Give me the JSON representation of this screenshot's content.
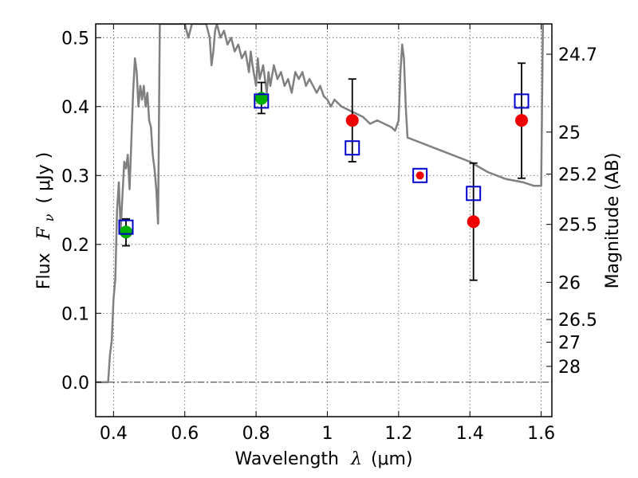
{
  "chart_data": {
    "type": "scatter",
    "title": "",
    "xlabel": "Wavelength",
    "xlabel_symbol": "λ",
    "xlabel_unit": "(μm)",
    "ylabel": "Flux",
    "ylabel_symbol": "F",
    "ylabel_subscript": "ν",
    "ylabel_unit": "( μJy )",
    "y2label": "Magnitude (AB)",
    "xlim": [
      0.35,
      1.63
    ],
    "ylim": [
      -0.05,
      0.52
    ],
    "grid": true,
    "grid_style": "dotted",
    "xticks": [
      0.4,
      0.6,
      0.8,
      1.0,
      1.2,
      1.4,
      1.6
    ],
    "xtick_labels": [
      "0.4",
      "0.6",
      "0.8",
      "1",
      "1.2",
      "1.4",
      "1.6"
    ],
    "yticks": [
      0.0,
      0.1,
      0.2,
      0.3,
      0.4,
      0.5
    ],
    "ytick_labels": [
      "0.0",
      "0.1",
      "0.2",
      "0.3",
      "0.4",
      "0.5"
    ],
    "right_ticks": [
      {
        "flux": 0.476,
        "label": "24.7"
      },
      {
        "flux": 0.363,
        "label": "25"
      },
      {
        "flux": 0.302,
        "label": "25.2"
      },
      {
        "flux": 0.229,
        "label": "25.5"
      },
      {
        "flux": 0.145,
        "label": "26"
      },
      {
        "flux": 0.091,
        "label": "26.5"
      },
      {
        "flux": 0.058,
        "label": "27"
      },
      {
        "flux": 0.023,
        "label": "28"
      }
    ],
    "zero_line": {
      "y": 0.0,
      "color": "#333333",
      "style": "dashdot"
    },
    "colors": {
      "template": "#808080",
      "model": "#0000cc",
      "observed_optical": "#00b000",
      "observed_ir": "#ee0000",
      "errorbar": "#000000"
    },
    "series": [
      {
        "kind": "model_template",
        "points": [
          [
            0.35,
            0.0
          ],
          [
            0.38,
            0.0
          ],
          [
            0.385,
            0.0
          ],
          [
            0.39,
            0.04
          ],
          [
            0.395,
            0.06
          ],
          [
            0.4,
            0.12
          ],
          [
            0.405,
            0.15
          ],
          [
            0.41,
            0.25
          ],
          [
            0.415,
            0.29
          ],
          [
            0.42,
            0.22
          ],
          [
            0.425,
            0.27
          ],
          [
            0.43,
            0.32
          ],
          [
            0.435,
            0.31
          ],
          [
            0.44,
            0.33
          ],
          [
            0.445,
            0.28
          ],
          [
            0.45,
            0.35
          ],
          [
            0.455,
            0.42
          ],
          [
            0.46,
            0.47
          ],
          [
            0.465,
            0.45
          ],
          [
            0.47,
            0.4
          ],
          [
            0.475,
            0.43
          ],
          [
            0.48,
            0.41
          ],
          [
            0.485,
            0.43
          ],
          [
            0.49,
            0.4
          ],
          [
            0.495,
            0.42
          ],
          [
            0.5,
            0.38
          ],
          [
            0.505,
            0.37
          ],
          [
            0.51,
            0.33
          ],
          [
            0.515,
            0.31
          ],
          [
            0.52,
            0.28
          ],
          [
            0.525,
            0.23
          ],
          [
            0.53,
            0.52
          ],
          [
            0.55,
            0.52
          ],
          [
            0.58,
            0.52
          ],
          [
            0.6,
            0.52
          ],
          [
            0.61,
            0.5
          ],
          [
            0.62,
            0.52
          ],
          [
            0.63,
            0.52
          ],
          [
            0.64,
            0.52
          ],
          [
            0.65,
            0.52
          ],
          [
            0.66,
            0.52
          ],
          [
            0.67,
            0.5
          ],
          [
            0.675,
            0.46
          ],
          [
            0.68,
            0.48
          ],
          [
            0.685,
            0.51
          ],
          [
            0.69,
            0.52
          ],
          [
            0.7,
            0.5
          ],
          [
            0.71,
            0.51
          ],
          [
            0.72,
            0.49
          ],
          [
            0.73,
            0.5
          ],
          [
            0.74,
            0.48
          ],
          [
            0.75,
            0.49
          ],
          [
            0.76,
            0.47
          ],
          [
            0.77,
            0.48
          ],
          [
            0.78,
            0.45
          ],
          [
            0.785,
            0.48
          ],
          [
            0.79,
            0.46
          ],
          [
            0.8,
            0.43
          ],
          [
            0.805,
            0.47
          ],
          [
            0.81,
            0.44
          ],
          [
            0.82,
            0.46
          ],
          [
            0.83,
            0.42
          ],
          [
            0.835,
            0.45
          ],
          [
            0.84,
            0.43
          ],
          [
            0.85,
            0.46
          ],
          [
            0.86,
            0.44
          ],
          [
            0.87,
            0.45
          ],
          [
            0.88,
            0.43
          ],
          [
            0.89,
            0.44
          ],
          [
            0.9,
            0.42
          ],
          [
            0.91,
            0.45
          ],
          [
            0.92,
            0.44
          ],
          [
            0.93,
            0.45
          ],
          [
            0.94,
            0.43
          ],
          [
            0.95,
            0.44
          ],
          [
            0.96,
            0.43
          ],
          [
            0.97,
            0.42
          ],
          [
            0.98,
            0.43
          ],
          [
            0.99,
            0.415
          ],
          [
            1.0,
            0.41
          ],
          [
            1.01,
            0.4
          ],
          [
            1.02,
            0.41
          ],
          [
            1.04,
            0.4
          ],
          [
            1.06,
            0.395
          ],
          [
            1.08,
            0.39
          ],
          [
            1.1,
            0.385
          ],
          [
            1.12,
            0.375
          ],
          [
            1.14,
            0.38
          ],
          [
            1.16,
            0.375
          ],
          [
            1.18,
            0.37
          ],
          [
            1.19,
            0.365
          ],
          [
            1.2,
            0.38
          ],
          [
            1.205,
            0.45
          ],
          [
            1.21,
            0.49
          ],
          [
            1.215,
            0.47
          ],
          [
            1.22,
            0.4
          ],
          [
            1.225,
            0.355
          ],
          [
            1.25,
            0.35
          ],
          [
            1.3,
            0.34
          ],
          [
            1.35,
            0.33
          ],
          [
            1.4,
            0.32
          ],
          [
            1.45,
            0.305
          ],
          [
            1.5,
            0.295
          ],
          [
            1.55,
            0.29
          ],
          [
            1.58,
            0.285
          ],
          [
            1.6,
            0.285
          ],
          [
            1.605,
            0.52
          ]
        ]
      },
      {
        "kind": "model_photometry",
        "marker": "open_square",
        "points": [
          {
            "x": 0.435,
            "y": 0.225
          },
          {
            "x": 0.815,
            "y": 0.408
          },
          {
            "x": 1.07,
            "y": 0.34
          },
          {
            "x": 1.26,
            "y": 0.3
          },
          {
            "x": 1.41,
            "y": 0.274
          },
          {
            "x": 1.545,
            "y": 0.408
          }
        ]
      },
      {
        "kind": "observed_photometry",
        "marker": "filled_circle",
        "points": [
          {
            "x": 0.435,
            "y": 0.218,
            "err_low": 0.198,
            "err_high": 0.237,
            "color_key": "observed_optical"
          },
          {
            "x": 0.815,
            "y": 0.412,
            "err_low": 0.39,
            "err_high": 0.435,
            "color_key": "observed_optical"
          },
          {
            "x": 1.07,
            "y": 0.38,
            "err_low": 0.32,
            "err_high": 0.44,
            "color_key": "observed_ir"
          },
          {
            "x": 1.26,
            "y": 0.3,
            "err_low": null,
            "err_high": null,
            "color_key": "observed_ir",
            "small": true
          },
          {
            "x": 1.41,
            "y": 0.233,
            "err_low": 0.148,
            "err_high": 0.318,
            "color_key": "observed_ir"
          },
          {
            "x": 1.545,
            "y": 0.38,
            "err_low": 0.296,
            "err_high": 0.463,
            "color_key": "observed_ir"
          }
        ]
      }
    ]
  }
}
